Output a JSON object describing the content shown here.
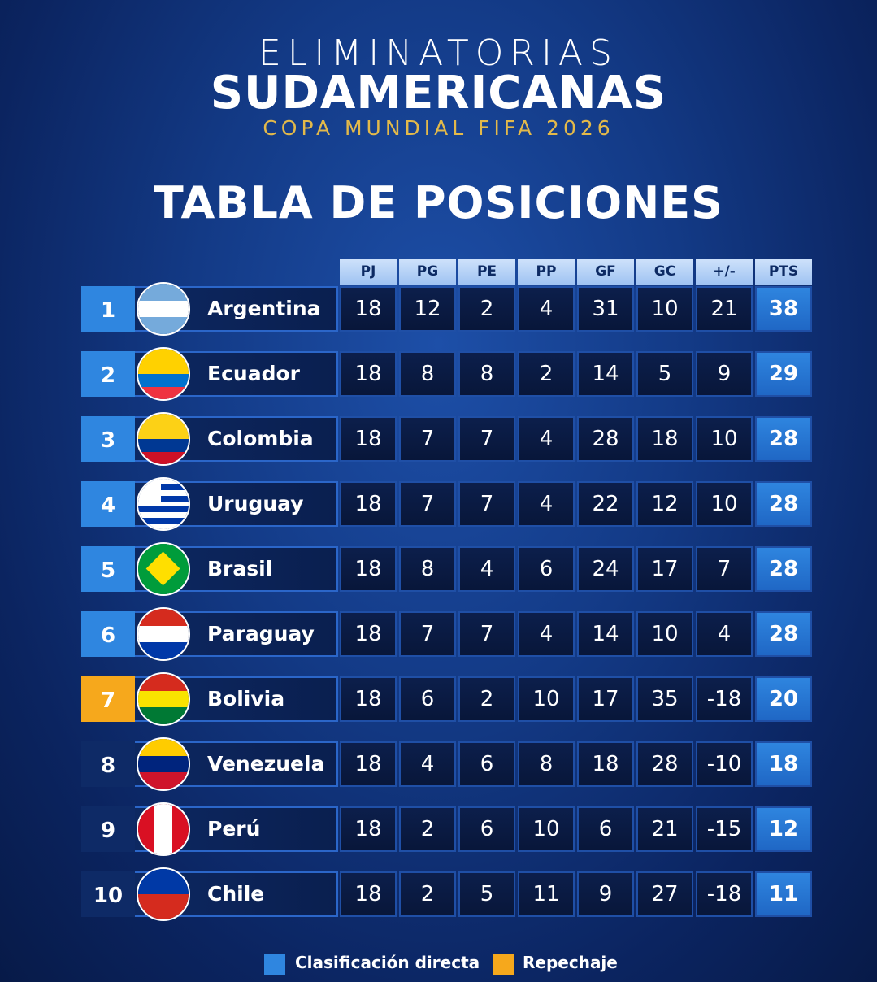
{
  "header": {
    "line1": "ELIMINATORIAS",
    "line2": "SUDAMERICANAS",
    "line3": "COPA MUNDIAL FIFA 2026",
    "title": "TABLA DE POSICIONES"
  },
  "table": {
    "columns": [
      "PJ",
      "PG",
      "PE",
      "PP",
      "GF",
      "GC",
      "+/-",
      "PTS"
    ],
    "rows": [
      {
        "position": 1,
        "team": "Argentina",
        "color": "#2f86e0",
        "stats": [
          18,
          12,
          2,
          4,
          31,
          10,
          21,
          38
        ]
      },
      {
        "position": 2,
        "team": "Ecuador",
        "color": "#2f86e0",
        "stats": [
          18,
          8,
          8,
          2,
          14,
          5,
          9,
          29
        ]
      },
      {
        "position": 3,
        "team": "Colombia",
        "color": "#2f86e0",
        "stats": [
          18,
          7,
          7,
          4,
          28,
          18,
          10,
          28
        ]
      },
      {
        "position": 4,
        "team": "Uruguay",
        "color": "#2f86e0",
        "stats": [
          18,
          7,
          7,
          4,
          22,
          12,
          10,
          28
        ]
      },
      {
        "position": 5,
        "team": "Brasil",
        "color": "#2f86e0",
        "stats": [
          18,
          8,
          4,
          6,
          24,
          17,
          7,
          28
        ]
      },
      {
        "position": 6,
        "team": "Paraguay",
        "color": "#2f86e0",
        "stats": [
          18,
          7,
          7,
          4,
          14,
          10,
          4,
          28
        ]
      },
      {
        "position": 7,
        "team": "Bolivia",
        "color": "#f6a81c",
        "stats": [
          18,
          6,
          2,
          10,
          17,
          35,
          -18,
          20
        ]
      },
      {
        "position": 8,
        "team": "Venezuela",
        "color": "#0e2a66",
        "stats": [
          18,
          4,
          6,
          8,
          18,
          28,
          -10,
          18
        ]
      },
      {
        "position": 9,
        "team": "Perú",
        "color": "#0e2a66",
        "stats": [
          18,
          2,
          6,
          10,
          6,
          21,
          -15,
          12
        ]
      },
      {
        "position": 10,
        "team": "Chile",
        "color": "#0e2a66",
        "stats": [
          18,
          2,
          5,
          11,
          9,
          27,
          -18,
          11
        ]
      }
    ]
  },
  "legend": [
    {
      "label": "Clasificación directa",
      "color": "#2f86e0"
    },
    {
      "label": "Repechaje",
      "color": "#f6a81c"
    }
  ]
}
